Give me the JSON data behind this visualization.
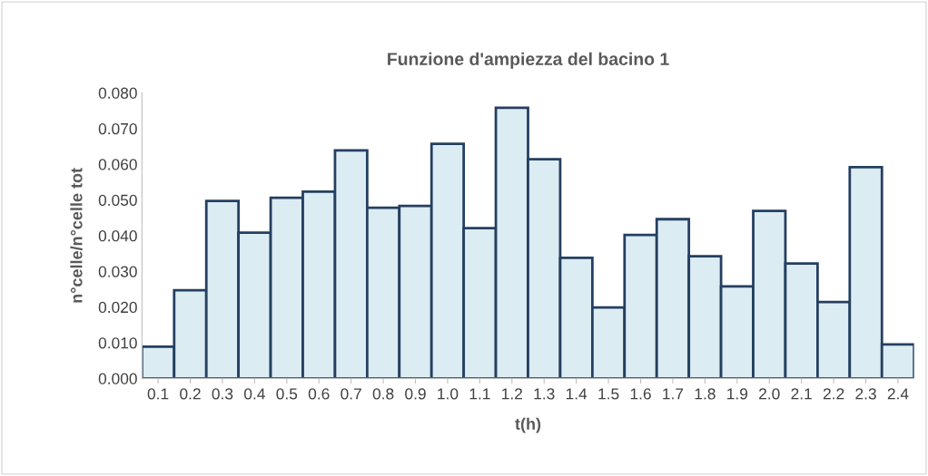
{
  "chart_data": {
    "type": "bar",
    "title": "Funzione d'ampiezza del bacino 1",
    "xlabel": "t(h)",
    "ylabel": "n°celle/n°celle tot",
    "categories": [
      "0.1",
      "0.2",
      "0.3",
      "0.4",
      "0.5",
      "0.6",
      "0.7",
      "0.8",
      "0.9",
      "1.0",
      "1.1",
      "1.2",
      "1.3",
      "1.4",
      "1.5",
      "1.6",
      "1.7",
      "1.8",
      "1.9",
      "2.0",
      "2.1",
      "2.2",
      "2.3",
      "2.4"
    ],
    "values": [
      0.0089,
      0.0247,
      0.0497,
      0.0408,
      0.0506,
      0.0523,
      0.0639,
      0.0478,
      0.0483,
      0.0657,
      0.0421,
      0.0758,
      0.0614,
      0.0338,
      0.0199,
      0.0402,
      0.0446,
      0.0342,
      0.0258,
      0.0469,
      0.0322,
      0.0214,
      0.0592,
      0.0095
    ],
    "color": "#dbecf3",
    "ylim": [
      0,
      0.08
    ],
    "yticks": [
      {
        "value": 0,
        "label": "0.000"
      },
      {
        "value": 0.01,
        "label": "0.010"
      },
      {
        "value": 0.02,
        "label": "0.020"
      },
      {
        "value": 0.03,
        "label": "0.030"
      },
      {
        "value": 0.04,
        "label": "0.040"
      },
      {
        "value": 0.05,
        "label": "0.050"
      },
      {
        "value": 0.06,
        "label": "0.060"
      },
      {
        "value": 0.07,
        "label": "0.070"
      },
      {
        "value": 0.08,
        "label": "0.080"
      }
    ],
    "grid": false
  }
}
